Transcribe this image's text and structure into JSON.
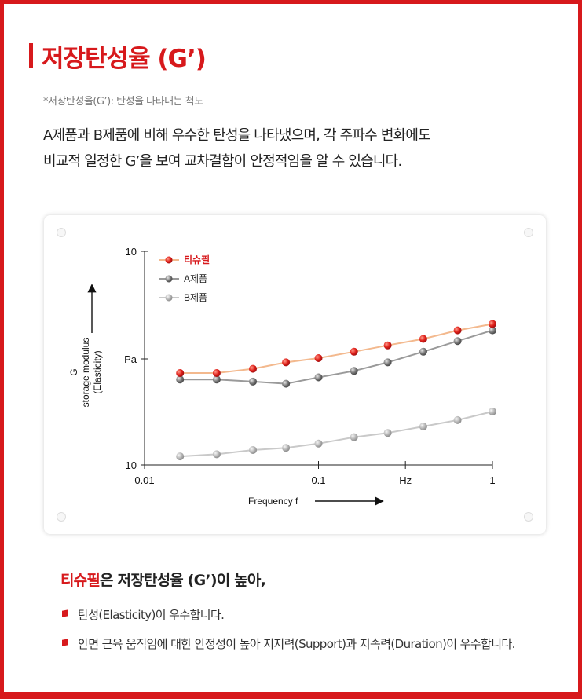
{
  "header": {
    "title": "저장탄성율 (G’)",
    "note": "*저장탄성율(G’): 탄성을 나타내는 척도",
    "description_lines": [
      "A제품과 B제품에 비해 우수한 탄성을 나타냈으며, 각 주파수 변화에도",
      "비교적 일정한 G’을 보여 교차결합이 안정적임을 알 수 있습니다."
    ]
  },
  "chart_data": {
    "type": "line",
    "x_scale": "log",
    "x_ticks": [
      "0.01",
      "0.1",
      "Hz",
      "1"
    ],
    "y_ticks": [
      "10",
      "Pa",
      "10"
    ],
    "xlabel": "Frequency f",
    "ylabel_lines": [
      "G",
      "storage modulus",
      "(Elasticity)"
    ],
    "xlim": [
      0.01,
      1
    ],
    "legend_position": "top-left",
    "grid": false,
    "x": [
      0.016,
      0.026,
      0.042,
      0.065,
      0.1,
      0.16,
      0.25,
      0.4,
      0.63,
      1.0
    ],
    "series": [
      {
        "name": "티슈필",
        "color": "#d7191c",
        "line_color": "#f3b98e",
        "values": [
          0.43,
          0.43,
          0.45,
          0.48,
          0.5,
          0.53,
          0.56,
          0.59,
          0.63,
          0.66
        ]
      },
      {
        "name": "A제품",
        "color": "#7a7a7a",
        "line_color": "#9a9a9a",
        "values": [
          0.4,
          0.4,
          0.39,
          0.38,
          0.41,
          0.44,
          0.48,
          0.53,
          0.58,
          0.63
        ]
      },
      {
        "name": "B제품",
        "color": "#b0b0b0",
        "line_color": "#c9c9c9",
        "values": [
          0.04,
          0.05,
          0.07,
          0.08,
          0.1,
          0.13,
          0.15,
          0.18,
          0.21,
          0.25
        ]
      }
    ]
  },
  "summary": {
    "brand": "티슈필",
    "rest": "은 저장탄성율 (G’)이 높아,",
    "bullets": [
      "탄성(Elasticity)이 우수합니다.",
      "안면 근육 움직임에 대한 안정성이 높아 지지력(Support)과 지속력(Duration)이 우수합니다."
    ]
  }
}
